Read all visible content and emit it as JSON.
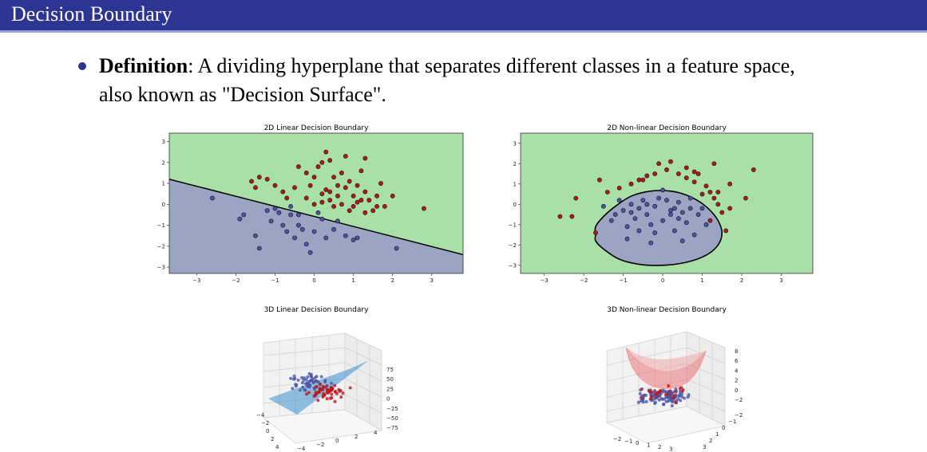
{
  "slide": {
    "title": "Decision Boundary",
    "term": "Definition",
    "definition_line1": ": A dividing hyperplane that separates different classes in a feature space,",
    "definition_line2": "also known as \"Decision Surface\"."
  },
  "colors": {
    "header": "#2d3593",
    "region_green": "#a8e0a8",
    "region_blue": "#9ca4c4",
    "class_red": "#b8161b",
    "class_blue": "#4a55a8"
  },
  "chart_data": [
    {
      "type": "scatter",
      "title": "2D Linear Decision Boundary",
      "xlim": [
        -3.7,
        3.8
      ],
      "ylim": [
        -3.3,
        3.4
      ],
      "xticks": [
        -3,
        -2,
        -1,
        0,
        1,
        2,
        3
      ],
      "yticks": [
        -3,
        -2,
        -1,
        0,
        1,
        2,
        3
      ],
      "boundary": {
        "kind": "line",
        "points": [
          [
            -3.7,
            1.2
          ],
          [
            3.8,
            -2.4
          ]
        ]
      },
      "series": [
        {
          "class": "red",
          "points": [
            [
              -1.6,
              1.1
            ],
            [
              -1.4,
              1.3
            ],
            [
              -1.2,
              1.2
            ],
            [
              -1.5,
              0.8
            ],
            [
              -1.0,
              0.9
            ],
            [
              -0.8,
              0.6
            ],
            [
              -0.5,
              0.8
            ],
            [
              -0.4,
              1.8
            ],
            [
              -0.2,
              1.5
            ],
            [
              -0.1,
              0.9
            ],
            [
              0.0,
              1.3
            ],
            [
              0.1,
              1.8
            ],
            [
              0.2,
              2.0
            ],
            [
              0.3,
              0.7
            ],
            [
              0.4,
              0.6
            ],
            [
              0.4,
              2.1
            ],
            [
              0.5,
              1.3
            ],
            [
              0.6,
              0.9
            ],
            [
              0.7,
              1.5
            ],
            [
              0.8,
              0.8
            ],
            [
              0.9,
              1.1
            ],
            [
              1.0,
              0.4
            ],
            [
              1.1,
              0.9
            ],
            [
              1.2,
              1.6
            ],
            [
              1.3,
              0.6
            ],
            [
              1.4,
              0.2
            ],
            [
              1.5,
              -0.3
            ],
            [
              1.6,
              0.4
            ],
            [
              1.7,
              1.0
            ],
            [
              1.8,
              -0.1
            ],
            [
              2.0,
              0.4
            ],
            [
              0.3,
              2.5
            ],
            [
              1.3,
              2.2
            ],
            [
              0.8,
              2.3
            ],
            [
              0.0,
              0.0
            ],
            [
              0.2,
              0.1
            ],
            [
              0.5,
              -0.1
            ],
            [
              0.9,
              -0.3
            ],
            [
              1.1,
              0.1
            ],
            [
              1.3,
              -0.4
            ],
            [
              0.6,
              0.4
            ],
            [
              2.8,
              -0.2
            ],
            [
              -0.7,
              0.3
            ],
            [
              0.2,
              0.5
            ],
            [
              1.0,
              -0.1
            ],
            [
              0.4,
              0.2
            ],
            [
              1.2,
              0.2
            ],
            [
              0.7,
              0.0
            ],
            [
              -0.2,
              0.3
            ],
            [
              1.6,
              -0.1
            ]
          ]
        },
        {
          "class": "blue",
          "points": [
            [
              -2.6,
              0.3
            ],
            [
              -1.9,
              -0.7
            ],
            [
              -1.8,
              -0.5
            ],
            [
              -1.5,
              -1.5
            ],
            [
              -1.4,
              -2.1
            ],
            [
              -1.2,
              -0.3
            ],
            [
              -1.0,
              -0.2
            ],
            [
              -0.9,
              -0.4
            ],
            [
              -0.8,
              -1.0
            ],
            [
              -0.7,
              -1.3
            ],
            [
              -0.6,
              -0.1
            ],
            [
              -0.5,
              -1.6
            ],
            [
              -0.4,
              -0.5
            ],
            [
              -0.3,
              -1.2
            ],
            [
              -0.2,
              -1.9
            ],
            [
              -0.1,
              -2.3
            ],
            [
              0.0,
              -1.3
            ],
            [
              0.2,
              -0.7
            ],
            [
              0.5,
              -1.2
            ],
            [
              0.8,
              -1.5
            ],
            [
              1.0,
              -1.7
            ],
            [
              1.1,
              -1.6
            ],
            [
              0.6,
              -0.8
            ],
            [
              2.1,
              -2.1
            ],
            [
              -0.4,
              -1.0
            ],
            [
              0.3,
              -1.6
            ],
            [
              -0.6,
              -0.5
            ],
            [
              -1.1,
              -0.8
            ],
            [
              0.1,
              -0.4
            ]
          ]
        }
      ]
    },
    {
      "type": "scatter",
      "title": "2D Non-linear Decision Boundary",
      "xlim": [
        -3.6,
        3.8
      ],
      "ylim": [
        -3.4,
        3.5
      ],
      "xticks": [
        -3,
        -2,
        -1,
        0,
        1,
        2,
        3
      ],
      "yticks": [
        -3,
        -2,
        -1,
        0,
        1,
        2,
        3
      ],
      "boundary": {
        "kind": "closed-curve",
        "points": [
          [
            -1.7,
            -1.5
          ],
          [
            -1.7,
            -1.1
          ],
          [
            -1.5,
            -0.6
          ],
          [
            -1.2,
            -0.1
          ],
          [
            -0.8,
            0.4
          ],
          [
            -0.3,
            0.65
          ],
          [
            0.2,
            0.65
          ],
          [
            0.6,
            0.45
          ],
          [
            0.95,
            0.1
          ],
          [
            1.2,
            -0.3
          ],
          [
            1.4,
            -0.8
          ],
          [
            1.5,
            -1.4
          ],
          [
            1.4,
            -2.0
          ],
          [
            1.1,
            -2.5
          ],
          [
            0.6,
            -2.85
          ],
          [
            0.0,
            -3.0
          ],
          [
            -0.6,
            -2.95
          ],
          [
            -1.1,
            -2.7
          ],
          [
            -1.5,
            -2.2
          ],
          [
            -1.7,
            -1.8
          ]
        ]
      },
      "series": [
        {
          "class": "red",
          "points": [
            [
              -2.6,
              -0.6
            ],
            [
              -2.3,
              -0.6
            ],
            [
              -2.2,
              0.3
            ],
            [
              -1.6,
              1.2
            ],
            [
              -1.4,
              0.6
            ],
            [
              -1.1,
              0.8
            ],
            [
              -0.8,
              1.0
            ],
            [
              -0.6,
              1.2
            ],
            [
              -0.4,
              1.4
            ],
            [
              -0.2,
              1.5
            ],
            [
              0.1,
              1.7
            ],
            [
              0.2,
              2.1
            ],
            [
              0.4,
              1.5
            ],
            [
              0.6,
              1.3
            ],
            [
              0.8,
              1.1
            ],
            [
              0.9,
              1.5
            ],
            [
              1.1,
              0.9
            ],
            [
              1.2,
              0.6
            ],
            [
              1.3,
              0.3
            ],
            [
              1.4,
              0.0
            ],
            [
              1.5,
              -0.4
            ],
            [
              1.6,
              -1.3
            ],
            [
              1.7,
              -0.2
            ],
            [
              1.4,
              0.6
            ],
            [
              1.7,
              1.0
            ],
            [
              2.1,
              0.3
            ],
            [
              2.3,
              1.7
            ],
            [
              1.3,
              2.0
            ],
            [
              0.6,
              1.8
            ],
            [
              -0.1,
              2.0
            ],
            [
              1.0,
              0.5
            ],
            [
              1.2,
              -0.8
            ],
            [
              -1.7,
              -1.4
            ],
            [
              0.8,
              1.6
            ],
            [
              -0.5,
              1.2
            ]
          ]
        },
        {
          "class": "blue",
          "points": [
            [
              -1.3,
              -0.8
            ],
            [
              -1.2,
              -0.5
            ],
            [
              -1.0,
              -0.3
            ],
            [
              -0.9,
              -1.1
            ],
            [
              -0.8,
              0.0
            ],
            [
              -0.7,
              -0.7
            ],
            [
              -0.6,
              -1.3
            ],
            [
              -0.5,
              0.2
            ],
            [
              -0.4,
              -0.5
            ],
            [
              -0.3,
              -1.0
            ],
            [
              -0.2,
              -0.1
            ],
            [
              -0.1,
              0.3
            ],
            [
              0.0,
              -0.8
            ],
            [
              0.1,
              0.2
            ],
            [
              0.2,
              -0.5
            ],
            [
              0.3,
              -1.3
            ],
            [
              0.4,
              0.1
            ],
            [
              0.5,
              -0.4
            ],
            [
              0.6,
              -0.9
            ],
            [
              0.7,
              -0.2
            ],
            [
              0.8,
              -1.5
            ],
            [
              0.9,
              -0.5
            ],
            [
              1.0,
              -0.2
            ],
            [
              -0.9,
              -1.7
            ],
            [
              -0.3,
              -1.9
            ],
            [
              0.5,
              -1.8
            ],
            [
              -1.5,
              -0.1
            ],
            [
              -0.8,
              -0.4
            ],
            [
              0.2,
              -0.3
            ],
            [
              -0.6,
              -0.2
            ],
            [
              0.0,
              0.7
            ],
            [
              -0.2,
              -1.4
            ],
            [
              0.7,
              0.3
            ],
            [
              1.1,
              -1.0
            ],
            [
              -1.1,
              0.2
            ],
            [
              0.3,
              -0.2
            ],
            [
              -0.4,
              0.0
            ],
            [
              0.4,
              -0.7
            ]
          ]
        }
      ]
    },
    {
      "type": "scatter",
      "title": "3D Linear Decision Boundary",
      "z_tick_labels": [
        "75",
        "50",
        "25",
        "0",
        "−25",
        "−50",
        "−75"
      ],
      "x_tick_labels": [
        "−4",
        "−2",
        "0",
        "2",
        "4"
      ],
      "y_tick_labels": [
        "4",
        "2",
        "0",
        "−2",
        "−4"
      ]
    },
    {
      "type": "scatter",
      "title": "3D Non-linear Decision Boundary",
      "z_tick_labels": [
        "8",
        "6",
        "4",
        "2",
        "0",
        "−2"
      ],
      "x_tick_labels": [
        "−2",
        "−1",
        "0",
        "1",
        "2",
        "3"
      ],
      "y_tick_labels": [
        "3",
        "2",
        "1",
        "0",
        "−1",
        "−2"
      ]
    }
  ]
}
